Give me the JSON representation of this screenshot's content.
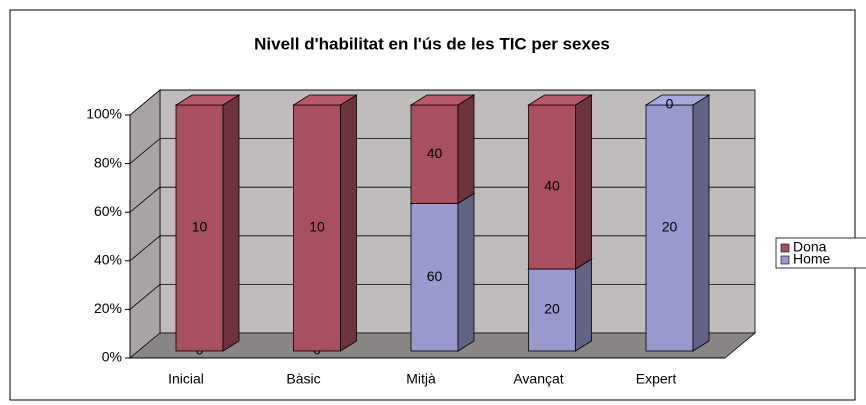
{
  "chart_data": {
    "type": "bar",
    "stacking": "percent",
    "title": "Nivell d'habilitat en l'ús de les TIC per sexes",
    "categories": [
      "Inicial",
      "Bàsic",
      "Mitjà",
      "Avançat",
      "Expert"
    ],
    "series": [
      {
        "name": "Home",
        "color": "#9999cc",
        "values": [
          0,
          0,
          60,
          20,
          20
        ]
      },
      {
        "name": "Dona",
        "color": "#a8505f",
        "values": [
          10,
          10,
          40,
          40,
          0
        ]
      }
    ],
    "ylim": [
      0,
      100
    ],
    "yticks": [
      {
        "value": 0,
        "label": "0%"
      },
      {
        "value": 20,
        "label": "20%"
      },
      {
        "value": 40,
        "label": "40%"
      },
      {
        "value": 60,
        "label": "60%"
      },
      {
        "value": 80,
        "label": "80%"
      },
      {
        "value": 100,
        "label": "100%"
      }
    ],
    "grid": true,
    "legend": "right"
  }
}
